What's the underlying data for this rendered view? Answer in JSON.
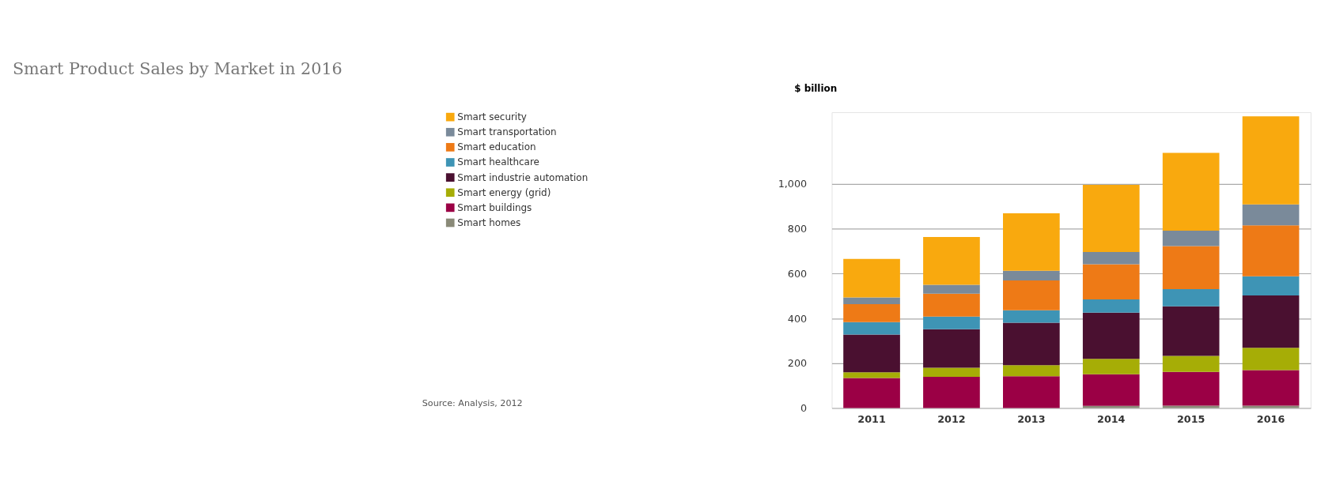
{
  "chart_data": {
    "type": "bar",
    "stacked": true,
    "title": "Smart Product Sales by Market in 2016",
    "ylabel": "$ billion",
    "categories": [
      "2011",
      "2012",
      "2013",
      "2014",
      "2015",
      "2016"
    ],
    "series": [
      {
        "name": "Smart homes",
        "color": "#8a8a78",
        "values": [
          0,
          0,
          0,
          10,
          11,
          11
        ]
      },
      {
        "name": "Smart buildings",
        "color": "#9b0045",
        "values": [
          134,
          140,
          142,
          141,
          151,
          159
        ]
      },
      {
        "name": "Smart energy (grid)",
        "color": "#a6ad06",
        "values": [
          26,
          40,
          50,
          69,
          71,
          99
        ]
      },
      {
        "name": "Smart industrie automation",
        "color": "#4a1030",
        "values": [
          168,
          172,
          189,
          206,
          221,
          234
        ]
      },
      {
        "name": "Smart healthcare",
        "color": "#3e94b5",
        "values": [
          56,
          56,
          56,
          59,
          77,
          85
        ]
      },
      {
        "name": "Smart education",
        "color": "#ee7a16",
        "values": [
          80,
          103,
          133,
          157,
          192,
          228
        ]
      },
      {
        "name": "Smart transportation",
        "color": "#7a8a9a",
        "values": [
          30,
          39,
          43,
          55,
          69,
          93
        ]
      },
      {
        "name": "Smart security",
        "color": "#f9a90e",
        "values": [
          172,
          214,
          256,
          299,
          347,
          393
        ]
      }
    ],
    "ylim": [
      0,
      1320
    ],
    "yticks": [
      0,
      200,
      400,
      600,
      800,
      {
        "value": 1000,
        "label": "1,000"
      }
    ],
    "grid": "y",
    "legend": "left",
    "annotations": [
      "Source: Analysis, 2012"
    ]
  }
}
